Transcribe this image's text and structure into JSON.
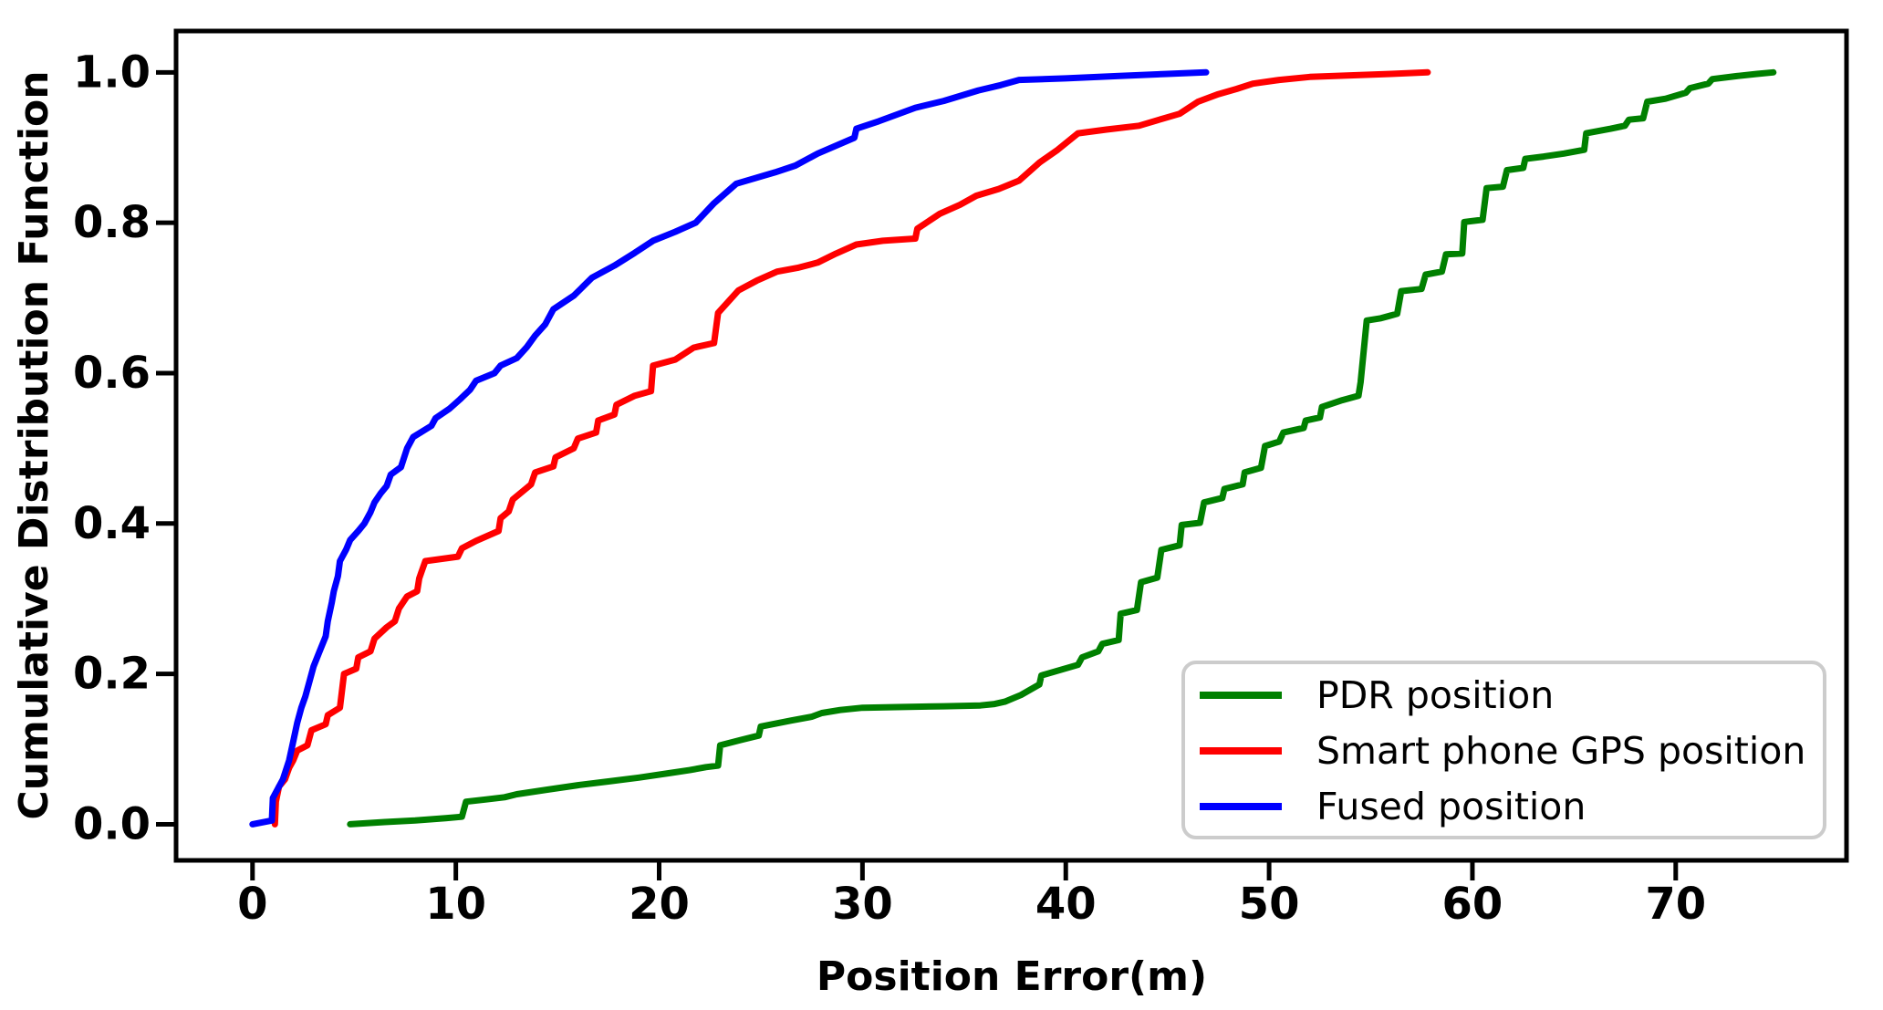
{
  "chart_data": {
    "type": "line",
    "style": "cdf-step-curves",
    "title": "",
    "xlabel": "Position Error(m)",
    "ylabel": "Cumulative Distribution Function",
    "xlim": [
      -3.76,
      78.4
    ],
    "ylim": [
      -0.048,
      1.055
    ],
    "grid": false,
    "xticks": {
      "values": [
        0,
        10,
        20,
        30,
        40,
        50,
        60,
        70
      ],
      "labels": [
        "0",
        "10",
        "20",
        "30",
        "40",
        "50",
        "60",
        "70"
      ]
    },
    "yticks": {
      "values": [
        0.0,
        0.2,
        0.4,
        0.6,
        0.8,
        1.0
      ],
      "labels": [
        "0.0",
        "0.2",
        "0.4",
        "0.6",
        "0.8",
        "1.0"
      ]
    },
    "legend": {
      "position": "lower right",
      "entries": [
        "PDR position",
        "Smart phone GPS position",
        "Fused position"
      ]
    },
    "colors": {
      "axis": "#000000",
      "legend_border": "#cccccc",
      "background": "#ffffff",
      "pdr": "#008000",
      "gps": "#ff0000",
      "fused": "#0000ff"
    },
    "series": [
      {
        "name": "PDR position",
        "color": "#008000",
        "points": [
          [
            4.8,
            0.0
          ],
          [
            6.5,
            0.003
          ],
          [
            8.0,
            0.005
          ],
          [
            9.5,
            0.008
          ],
          [
            10.3,
            0.01
          ],
          [
            10.5,
            0.03
          ],
          [
            11.5,
            0.033
          ],
          [
            12.4,
            0.036
          ],
          [
            13.0,
            0.04
          ],
          [
            14.5,
            0.046
          ],
          [
            16.0,
            0.052
          ],
          [
            17.5,
            0.057
          ],
          [
            19.0,
            0.062
          ],
          [
            20.5,
            0.068
          ],
          [
            21.5,
            0.072
          ],
          [
            22.3,
            0.076
          ],
          [
            22.9,
            0.078
          ],
          [
            23.0,
            0.105
          ],
          [
            24.0,
            0.112
          ],
          [
            24.9,
            0.118
          ],
          [
            25.0,
            0.13
          ],
          [
            26.5,
            0.138
          ],
          [
            27.5,
            0.143
          ],
          [
            28.0,
            0.148
          ],
          [
            28.9,
            0.152
          ],
          [
            30.0,
            0.155
          ],
          [
            32.0,
            0.156
          ],
          [
            34.0,
            0.157
          ],
          [
            35.8,
            0.158
          ],
          [
            36.5,
            0.16
          ],
          [
            37.0,
            0.163
          ],
          [
            37.8,
            0.172
          ],
          [
            38.7,
            0.186
          ],
          [
            38.8,
            0.198
          ],
          [
            40.6,
            0.212
          ],
          [
            40.8,
            0.222
          ],
          [
            41.6,
            0.23
          ],
          [
            41.8,
            0.24
          ],
          [
            42.6,
            0.245
          ],
          [
            42.7,
            0.28
          ],
          [
            43.5,
            0.285
          ],
          [
            43.7,
            0.322
          ],
          [
            44.5,
            0.328
          ],
          [
            44.7,
            0.365
          ],
          [
            45.6,
            0.371
          ],
          [
            45.7,
            0.398
          ],
          [
            46.6,
            0.401
          ],
          [
            46.8,
            0.428
          ],
          [
            47.7,
            0.434
          ],
          [
            47.8,
            0.446
          ],
          [
            48.7,
            0.452
          ],
          [
            48.8,
            0.468
          ],
          [
            49.6,
            0.474
          ],
          [
            49.8,
            0.503
          ],
          [
            50.5,
            0.509
          ],
          [
            50.7,
            0.521
          ],
          [
            51.7,
            0.527
          ],
          [
            51.8,
            0.537
          ],
          [
            52.5,
            0.541
          ],
          [
            52.6,
            0.555
          ],
          [
            53.6,
            0.564
          ],
          [
            54.4,
            0.57
          ],
          [
            54.5,
            0.588
          ],
          [
            54.8,
            0.67
          ],
          [
            55.5,
            0.673
          ],
          [
            56.3,
            0.679
          ],
          [
            56.5,
            0.709
          ],
          [
            57.5,
            0.712
          ],
          [
            57.7,
            0.731
          ],
          [
            58.5,
            0.735
          ],
          [
            58.7,
            0.758
          ],
          [
            59.5,
            0.759
          ],
          [
            59.6,
            0.801
          ],
          [
            60.5,
            0.804
          ],
          [
            60.7,
            0.846
          ],
          [
            61.5,
            0.848
          ],
          [
            61.7,
            0.87
          ],
          [
            62.5,
            0.873
          ],
          [
            62.6,
            0.885
          ],
          [
            63.5,
            0.888
          ],
          [
            64.5,
            0.892
          ],
          [
            65.5,
            0.897
          ],
          [
            65.6,
            0.919
          ],
          [
            66.8,
            0.925
          ],
          [
            67.5,
            0.929
          ],
          [
            67.7,
            0.937
          ],
          [
            68.4,
            0.939
          ],
          [
            68.6,
            0.961
          ],
          [
            69.5,
            0.965
          ],
          [
            70.5,
            0.973
          ],
          [
            70.7,
            0.979
          ],
          [
            71.6,
            0.985
          ],
          [
            71.8,
            0.991
          ],
          [
            73.0,
            0.995
          ],
          [
            74.0,
            0.998
          ],
          [
            74.8,
            1.0
          ]
        ]
      },
      {
        "name": "Smart phone GPS position",
        "color": "#ff0000",
        "points": [
          [
            1.1,
            0.0
          ],
          [
            1.15,
            0.03
          ],
          [
            1.3,
            0.05
          ],
          [
            1.6,
            0.06
          ],
          [
            1.8,
            0.075
          ],
          [
            2.0,
            0.085
          ],
          [
            2.2,
            0.098
          ],
          [
            2.7,
            0.105
          ],
          [
            2.9,
            0.125
          ],
          [
            3.6,
            0.133
          ],
          [
            3.7,
            0.145
          ],
          [
            4.3,
            0.155
          ],
          [
            4.4,
            0.178
          ],
          [
            4.5,
            0.2
          ],
          [
            5.1,
            0.207
          ],
          [
            5.2,
            0.222
          ],
          [
            5.8,
            0.23
          ],
          [
            6.0,
            0.247
          ],
          [
            6.6,
            0.262
          ],
          [
            7.0,
            0.27
          ],
          [
            7.2,
            0.287
          ],
          [
            7.6,
            0.303
          ],
          [
            8.1,
            0.31
          ],
          [
            8.2,
            0.327
          ],
          [
            8.3,
            0.335
          ],
          [
            8.5,
            0.35
          ],
          [
            10.1,
            0.356
          ],
          [
            10.3,
            0.367
          ],
          [
            11.0,
            0.377
          ],
          [
            12.1,
            0.39
          ],
          [
            12.2,
            0.407
          ],
          [
            12.6,
            0.416
          ],
          [
            12.8,
            0.432
          ],
          [
            13.7,
            0.452
          ],
          [
            13.9,
            0.468
          ],
          [
            14.8,
            0.476
          ],
          [
            14.9,
            0.488
          ],
          [
            15.8,
            0.5
          ],
          [
            16.0,
            0.513
          ],
          [
            16.9,
            0.521
          ],
          [
            17.0,
            0.537
          ],
          [
            17.8,
            0.545
          ],
          [
            17.9,
            0.558
          ],
          [
            18.8,
            0.57
          ],
          [
            19.6,
            0.576
          ],
          [
            19.7,
            0.61
          ],
          [
            20.8,
            0.618
          ],
          [
            21.7,
            0.634
          ],
          [
            22.7,
            0.64
          ],
          [
            22.9,
            0.68
          ],
          [
            23.9,
            0.71
          ],
          [
            24.8,
            0.723
          ],
          [
            25.8,
            0.735
          ],
          [
            26.8,
            0.74
          ],
          [
            27.8,
            0.747
          ],
          [
            28.7,
            0.759
          ],
          [
            29.7,
            0.771
          ],
          [
            31.0,
            0.776
          ],
          [
            32.6,
            0.779
          ],
          [
            32.7,
            0.792
          ],
          [
            33.8,
            0.812
          ],
          [
            34.8,
            0.824
          ],
          [
            35.6,
            0.836
          ],
          [
            36.7,
            0.845
          ],
          [
            37.7,
            0.856
          ],
          [
            38.7,
            0.88
          ],
          [
            39.6,
            0.897
          ],
          [
            40.6,
            0.919
          ],
          [
            42.0,
            0.924
          ],
          [
            43.6,
            0.929
          ],
          [
            44.6,
            0.937
          ],
          [
            45.6,
            0.945
          ],
          [
            46.5,
            0.961
          ],
          [
            47.5,
            0.971
          ],
          [
            48.4,
            0.978
          ],
          [
            49.2,
            0.985
          ],
          [
            50.5,
            0.99
          ],
          [
            52.0,
            0.994
          ],
          [
            54.0,
            0.996
          ],
          [
            56.0,
            0.998
          ],
          [
            57.8,
            1.0
          ]
        ]
      },
      {
        "name": "Fused position",
        "color": "#0000ff",
        "points": [
          [
            0.0,
            0.0
          ],
          [
            0.95,
            0.005
          ],
          [
            1.0,
            0.035
          ],
          [
            1.5,
            0.06
          ],
          [
            1.8,
            0.085
          ],
          [
            2.0,
            0.11
          ],
          [
            2.2,
            0.135
          ],
          [
            2.4,
            0.155
          ],
          [
            2.6,
            0.17
          ],
          [
            2.8,
            0.19
          ],
          [
            3.0,
            0.21
          ],
          [
            3.3,
            0.23
          ],
          [
            3.6,
            0.25
          ],
          [
            3.7,
            0.27
          ],
          [
            3.9,
            0.295
          ],
          [
            4.0,
            0.31
          ],
          [
            4.2,
            0.33
          ],
          [
            4.3,
            0.35
          ],
          [
            4.6,
            0.365
          ],
          [
            4.8,
            0.378
          ],
          [
            5.2,
            0.39
          ],
          [
            5.5,
            0.4
          ],
          [
            5.8,
            0.415
          ],
          [
            6.0,
            0.428
          ],
          [
            6.3,
            0.44
          ],
          [
            6.6,
            0.45
          ],
          [
            6.8,
            0.465
          ],
          [
            7.3,
            0.475
          ],
          [
            7.6,
            0.5
          ],
          [
            7.9,
            0.515
          ],
          [
            8.8,
            0.53
          ],
          [
            9.0,
            0.54
          ],
          [
            9.7,
            0.553
          ],
          [
            10.2,
            0.565
          ],
          [
            10.7,
            0.578
          ],
          [
            11.0,
            0.59
          ],
          [
            11.9,
            0.6
          ],
          [
            12.2,
            0.61
          ],
          [
            13.0,
            0.62
          ],
          [
            13.5,
            0.635
          ],
          [
            13.9,
            0.65
          ],
          [
            14.4,
            0.665
          ],
          [
            14.8,
            0.685
          ],
          [
            15.8,
            0.703
          ],
          [
            16.7,
            0.727
          ],
          [
            17.8,
            0.743
          ],
          [
            18.8,
            0.76
          ],
          [
            19.7,
            0.776
          ],
          [
            20.8,
            0.788
          ],
          [
            21.8,
            0.8
          ],
          [
            22.7,
            0.826
          ],
          [
            23.8,
            0.852
          ],
          [
            25.7,
            0.867
          ],
          [
            26.7,
            0.876
          ],
          [
            27.8,
            0.892
          ],
          [
            29.6,
            0.913
          ],
          [
            29.7,
            0.925
          ],
          [
            30.8,
            0.935
          ],
          [
            32.6,
            0.953
          ],
          [
            34.0,
            0.962
          ],
          [
            35.7,
            0.976
          ],
          [
            36.8,
            0.983
          ],
          [
            37.7,
            0.99
          ],
          [
            40.0,
            0.992
          ],
          [
            42.5,
            0.995
          ],
          [
            45.0,
            0.998
          ],
          [
            46.9,
            1.0
          ]
        ]
      }
    ]
  }
}
